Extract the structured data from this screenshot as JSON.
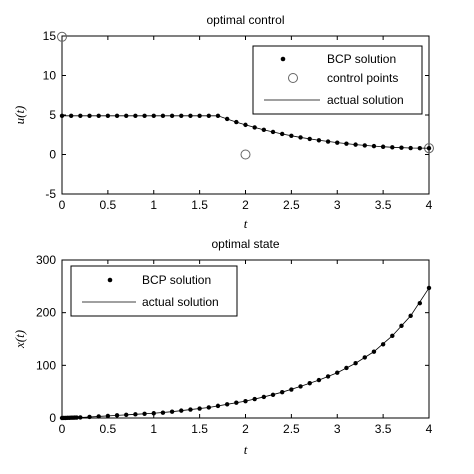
{
  "chart_data": [
    {
      "type": "scatter",
      "title": "optimal control",
      "xlabel": "t",
      "ylabel": "u(t)",
      "xlim": [
        0,
        4
      ],
      "ylim": [
        -5,
        15
      ],
      "xticks": [
        "0",
        "0.5",
        "1",
        "1.5",
        "2",
        "2.5",
        "3",
        "3.5",
        "4"
      ],
      "yticks": [
        "-5",
        "0",
        "5",
        "10",
        "15"
      ],
      "grid": false,
      "legend_position": "top-right",
      "legend": [
        "BCP solution",
        "control points",
        "actual solution"
      ],
      "series": [
        {
          "name": "BCP solution",
          "marker": "filled-dot",
          "x": [
            0,
            0.1,
            0.2,
            0.3,
            0.4,
            0.5,
            0.6,
            0.7,
            0.8,
            0.9,
            1.0,
            1.1,
            1.2,
            1.3,
            1.4,
            1.5,
            1.6,
            1.7,
            1.8,
            1.9,
            2.0,
            2.1,
            2.2,
            2.3,
            2.4,
            2.5,
            2.6,
            2.7,
            2.8,
            2.9,
            3.0,
            3.1,
            3.2,
            3.3,
            3.4,
            3.5,
            3.6,
            3.7,
            3.8,
            3.9,
            4.0
          ],
          "y": [
            4.9,
            4.9,
            4.9,
            4.9,
            4.9,
            4.9,
            4.9,
            4.9,
            4.9,
            4.9,
            4.9,
            4.9,
            4.9,
            4.9,
            4.9,
            4.9,
            4.9,
            4.9,
            4.5,
            4.1,
            3.75,
            3.42,
            3.12,
            2.85,
            2.6,
            2.37,
            2.16,
            1.97,
            1.8,
            1.64,
            1.5,
            1.37,
            1.25,
            1.15,
            1.06,
            0.98,
            0.91,
            0.86,
            0.82,
            0.8,
            0.8
          ]
        },
        {
          "name": "control points",
          "marker": "open-circle",
          "x": [
            0,
            2,
            4
          ],
          "y": [
            14.9,
            0,
            0.8
          ]
        },
        {
          "name": "actual solution",
          "marker": "line",
          "x": [
            0,
            0.2,
            0.4,
            0.6,
            0.8,
            1.0,
            1.2,
            1.4,
            1.6,
            1.7,
            1.8,
            1.9,
            2.0,
            2.2,
            2.4,
            2.6,
            2.8,
            3.0,
            3.2,
            3.4,
            3.6,
            3.8,
            4.0
          ],
          "y": [
            4.9,
            4.9,
            4.9,
            4.9,
            4.9,
            4.9,
            4.9,
            4.9,
            4.9,
            4.9,
            4.5,
            4.1,
            3.75,
            3.12,
            2.6,
            2.16,
            1.8,
            1.5,
            1.25,
            1.06,
            0.91,
            0.82,
            0.8
          ]
        }
      ]
    },
    {
      "type": "scatter",
      "title": "optimal state",
      "xlabel": "t",
      "ylabel": "x(t)",
      "xlim": [
        0,
        4
      ],
      "ylim": [
        0,
        300
      ],
      "xticks": [
        "0",
        "0.5",
        "1",
        "1.5",
        "2",
        "2.5",
        "3",
        "3.5",
        "4"
      ],
      "yticks": [
        "0",
        "100",
        "200",
        "300"
      ],
      "grid": false,
      "legend_position": "top-left",
      "legend": [
        "BCP solution",
        "actual solution"
      ],
      "series": [
        {
          "name": "BCP solution",
          "marker": "filled-dot",
          "x": [
            0,
            0.02,
            0.04,
            0.06,
            0.08,
            0.1,
            0.12,
            0.14,
            0.16,
            0.2,
            0.3,
            0.4,
            0.5,
            0.6,
            0.7,
            0.8,
            0.9,
            1.0,
            1.1,
            1.2,
            1.3,
            1.4,
            1.5,
            1.6,
            1.7,
            1.8,
            1.9,
            2.0,
            2.1,
            2.2,
            2.3,
            2.4,
            2.5,
            2.6,
            2.7,
            2.8,
            2.9,
            3.0,
            3.1,
            3.2,
            3.3,
            3.4,
            3.5,
            3.6,
            3.7,
            3.8,
            3.9,
            4.0
          ],
          "y": [
            0,
            0.1,
            0.2,
            0.3,
            0.4,
            0.5,
            0.6,
            0.7,
            0.8,
            1,
            2,
            3,
            4,
            5,
            6,
            7,
            8,
            9,
            10,
            12,
            14,
            16,
            18,
            20,
            23,
            26,
            29,
            32,
            36,
            40,
            44,
            49,
            54,
            60,
            66,
            72,
            79,
            86,
            95,
            104,
            115,
            126,
            140,
            156,
            175,
            194,
            218,
            247
          ]
        },
        {
          "name": "actual solution",
          "marker": "line",
          "x": [
            0,
            0.2,
            0.4,
            0.6,
            0.8,
            1.0,
            1.2,
            1.4,
            1.6,
            1.8,
            2.0,
            2.2,
            2.4,
            2.6,
            2.8,
            3.0,
            3.2,
            3.4,
            3.6,
            3.8,
            4.0
          ],
          "y": [
            0,
            1,
            3,
            5,
            7,
            9,
            12,
            16,
            20,
            26,
            32,
            40,
            49,
            60,
            72,
            86,
            104,
            126,
            156,
            194,
            247
          ]
        }
      ]
    }
  ]
}
